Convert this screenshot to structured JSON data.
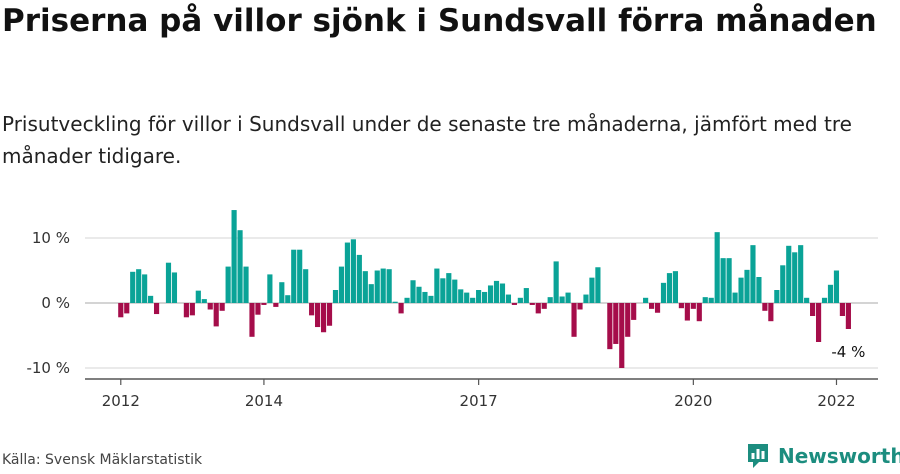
{
  "title": "Priserna på villor sjönk i Sundsvall förra månaden",
  "subtitle": "Prisutveckling för villor i Sundsvall under de senaste tre månaderna, jämfört med tre månader tidigare.",
  "source": "Källa: Svensk Mäklarstatistik",
  "brand": "Newsworthy",
  "colors": {
    "positive": "#0aa397",
    "negative": "#a50d4a",
    "grid": "#dddddd",
    "axis": "#555555",
    "brand": "#1c8d7f"
  },
  "chart_data": {
    "type": "bar",
    "title": "Priserna på villor sjönk i Sundsvall förra månaden",
    "xlabel": "",
    "ylabel": "",
    "ylim": [
      -11,
      15
    ],
    "y_ticks": [
      {
        "value": 10,
        "label": "10 %"
      },
      {
        "value": 0,
        "label": "0 %"
      },
      {
        "value": -10,
        "label": "-10 %"
      }
    ],
    "x_ticks": [
      {
        "value": 2012,
        "label": "2012"
      },
      {
        "value": 2014,
        "label": "2014"
      },
      {
        "value": 2017,
        "label": "2017"
      },
      {
        "value": 2020,
        "label": "2020"
      },
      {
        "value": 2022,
        "label": "2022"
      }
    ],
    "xlim": [
      2011.5,
      2022.58
    ],
    "start": 2012.0,
    "step": 0.08333,
    "annotation": {
      "text": "-4 %",
      "value": -4
    },
    "values": [
      -2.2,
      -1.6,
      4.8,
      5.2,
      4.4,
      1.1,
      -1.7,
      0,
      6.2,
      4.7,
      0,
      -2.2,
      -1.9,
      1.9,
      0.6,
      -1.0,
      -3.6,
      -1.2,
      5.6,
      14.3,
      11.2,
      5.6,
      -5.2,
      -1.8,
      -0.3,
      4.4,
      -0.6,
      3.2,
      1.2,
      8.2,
      8.2,
      5.2,
      -1.9,
      -3.7,
      -4.5,
      -3.5,
      2.0,
      5.6,
      9.3,
      9.8,
      7.4,
      4.9,
      2.9,
      5.0,
      5.3,
      5.2,
      0.2,
      -1.6,
      0.8,
      3.5,
      2.5,
      1.7,
      1.1,
      5.3,
      3.8,
      4.6,
      3.6,
      2.1,
      1.6,
      0.8,
      2.0,
      1.7,
      2.7,
      3.4,
      3.0,
      1.3,
      -0.3,
      0.8,
      2.3,
      -0.3,
      -1.6,
      -0.9,
      0.9,
      6.4,
      1.0,
      1.6,
      -5.2,
      -1.0,
      1.3,
      3.9,
      5.5,
      0,
      -7.1,
      -6.3,
      -10.0,
      -5.2,
      -2.6,
      0,
      0.8,
      -0.9,
      -1.5,
      3.1,
      4.6,
      4.9,
      -0.8,
      -2.7,
      -0.9,
      -2.8,
      0.9,
      0.8,
      10.9,
      6.9,
      6.9,
      1.6,
      3.9,
      5.1,
      8.9,
      4.0,
      -1.2,
      -2.8,
      2.0,
      5.8,
      8.8,
      7.8,
      8.9,
      0.8,
      -2.0,
      -6.0,
      0.8,
      2.8,
      5.0,
      -2.0,
      -4.0
    ]
  }
}
